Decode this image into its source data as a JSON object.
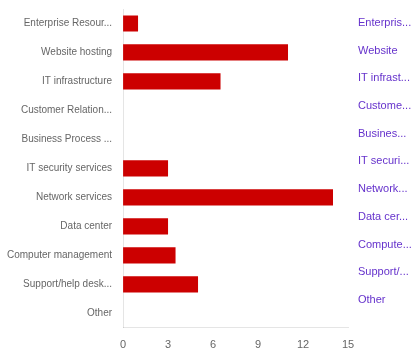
{
  "chart_data": {
    "type": "bar",
    "orientation": "horizontal",
    "categories": [
      "Enterprise Resour...",
      "Website hosting",
      "IT infrastructure",
      "Customer Relation...",
      "Business Process ...",
      "IT security services",
      "Network services",
      "Data center",
      "Computer management",
      "Support/help desk...",
      "Other"
    ],
    "values": [
      1,
      11,
      6.5,
      0,
      0,
      3,
      14,
      3,
      3.5,
      5,
      0
    ],
    "color": "#cc0000",
    "xlim": [
      0,
      15
    ],
    "xticks": [
      0,
      3,
      6,
      9,
      12,
      15
    ],
    "grid": false,
    "annotations": [
      {
        "text": "Enterpris...",
        "color": "#6633cc"
      },
      {
        "text": "Website",
        "color": "#6633cc"
      },
      {
        "text": "IT infrast...",
        "color": "#6633cc"
      },
      {
        "text": "Custome...",
        "color": "#6633cc"
      },
      {
        "text": "Busines...",
        "color": "#6633cc"
      },
      {
        "text": "IT securi...",
        "color": "#6633cc"
      },
      {
        "text": "Network...",
        "color": "#6633cc"
      },
      {
        "text": "Data cer...",
        "color": "#6633cc"
      },
      {
        "text": "Compute...",
        "color": "#6633cc"
      },
      {
        "text": "Support/...",
        "color": "#6633cc"
      },
      {
        "text": "Other",
        "color": "#6633cc"
      }
    ]
  }
}
